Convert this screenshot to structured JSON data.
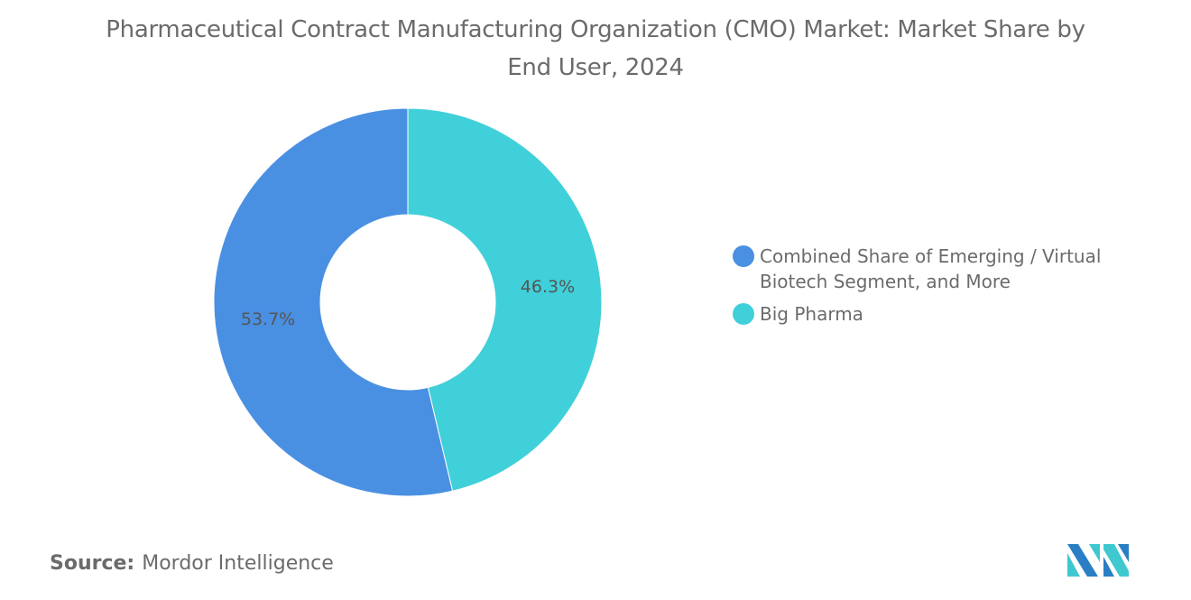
{
  "chart_data": {
    "type": "pie",
    "donut": true,
    "title": "Pharmaceutical Contract Manufacturing Organization (CMO) Market: Market Share by End User, 2024",
    "categories": [
      "Combined Share of Emerging / Virtual Biotech Segment, and More",
      "Big Pharma"
    ],
    "values": [
      53.7,
      46.3
    ],
    "labels": [
      "53.7%",
      "46.3%"
    ],
    "colors": [
      "#4a90e2",
      "#40d0d9"
    ],
    "legend_position": "right"
  },
  "source": {
    "label": "Source:",
    "value": "Mordor Intelligence"
  },
  "logo": {
    "text": "Mordor Intelligence",
    "colors": [
      "#2a7fc4",
      "#40c8d0"
    ]
  }
}
